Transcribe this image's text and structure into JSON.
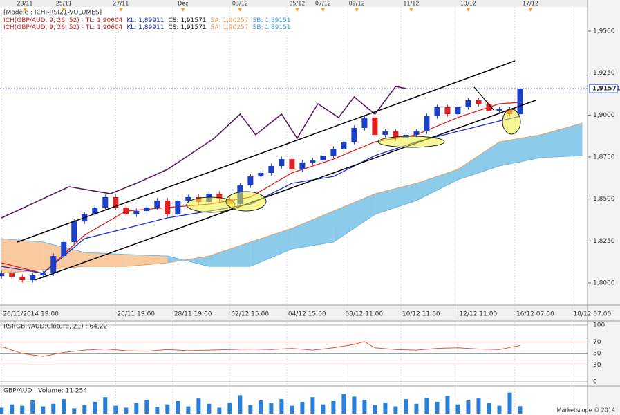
{
  "chart_data": [
    {
      "type": "candlestick",
      "header": "[Modèle : ICHI-RSI21-VOLUMES]",
      "info_lines": [
        [
          {
            "text": "ICH(GBP/AUD, 9, 26, 52) -  TL: 1,90604",
            "color": "#d42020"
          },
          {
            "text": "KL: 1,89911",
            "color": "#1a2fc0"
          },
          {
            "text": "CS: 1,91571",
            "color": "#222222"
          },
          {
            "text": "SA: 1,90257",
            "color": "#e89a50"
          },
          {
            "text": "SB: 1,89151",
            "color": "#3aa0e0"
          }
        ],
        [
          {
            "text": "ICH(GBP/AUD, 9, 26, 52) -  TL: 1,90604",
            "color": "#d42020"
          },
          {
            "text": "KL: 1,89911",
            "color": "#1a2fc0"
          },
          {
            "text": "CS: 1,91571",
            "color": "#222222"
          },
          {
            "text": "SA: 1,90257",
            "color": "#e89a50"
          },
          {
            "text": "SB: 1,89151",
            "color": "#3aa0e0"
          }
        ]
      ],
      "x": [
        0,
        2,
        4,
        6,
        8,
        10,
        12,
        14,
        16,
        18,
        20,
        22,
        24,
        26,
        28,
        30,
        32,
        34,
        36,
        38,
        40,
        42,
        44,
        46,
        48,
        50,
        52,
        54,
        56,
        58,
        60,
        62,
        64,
        66,
        68,
        70,
        72,
        74,
        76,
        78,
        80,
        82,
        84,
        86,
        88,
        90,
        92,
        94,
        96,
        98,
        100
      ],
      "open": [
        1.804,
        1.8057,
        1.8037,
        1.8016,
        1.8045,
        1.8057,
        1.816,
        1.8243,
        1.8366,
        1.8408,
        1.8449,
        1.8511,
        1.8449,
        1.8408,
        1.8428,
        1.8449,
        1.849,
        1.8408,
        1.849,
        1.8511,
        1.8482,
        1.8531,
        1.8498,
        1.8469,
        1.8581,
        1.8634,
        1.8655,
        1.8696,
        1.8737,
        1.8676,
        1.8717,
        1.8729,
        1.8758,
        1.8799,
        1.884,
        1.8923,
        1.8985,
        1.8882,
        1.8902,
        1.8861,
        1.8882,
        1.8902,
        1.8993,
        1.9047,
        1.9005,
        1.9047,
        1.9088,
        1.9067,
        1.9026,
        1.9034,
        1.9005
      ],
      "high": [
        1.8072,
        1.8072,
        1.8052,
        1.806,
        1.8072,
        1.8175,
        1.8258,
        1.8381,
        1.8423,
        1.8464,
        1.8526,
        1.8526,
        1.8464,
        1.8443,
        1.8464,
        1.8505,
        1.8505,
        1.8505,
        1.8526,
        1.8526,
        1.8546,
        1.8546,
        1.8513,
        1.8596,
        1.8649,
        1.867,
        1.8711,
        1.8752,
        1.8752,
        1.8732,
        1.8744,
        1.8773,
        1.8814,
        1.8855,
        1.8938,
        1.9,
        1.9,
        1.8917,
        1.8917,
        1.8897,
        1.8917,
        1.9008,
        1.9062,
        1.9062,
        1.9062,
        1.9103,
        1.9103,
        1.9082,
        1.9049,
        1.9049,
        1.9172
      ],
      "low": [
        1.8025,
        1.8022,
        1.8001,
        1.8001,
        1.803,
        1.8042,
        1.8145,
        1.8228,
        1.8351,
        1.8393,
        1.8434,
        1.8434,
        1.8393,
        1.8393,
        1.8413,
        1.8434,
        1.8393,
        1.8393,
        1.8475,
        1.8467,
        1.8467,
        1.8483,
        1.8454,
        1.8454,
        1.8566,
        1.8619,
        1.864,
        1.8681,
        1.8661,
        1.8661,
        1.8702,
        1.8714,
        1.8743,
        1.8784,
        1.8825,
        1.8908,
        1.8867,
        1.8867,
        1.8846,
        1.8846,
        1.8867,
        1.8887,
        1.8978,
        1.899,
        1.899,
        1.9032,
        1.9052,
        1.9011,
        1.9011,
        1.899,
        1.899
      ],
      "close": [
        1.8057,
        1.8037,
        1.8016,
        1.8045,
        1.8057,
        1.816,
        1.8243,
        1.8366,
        1.8408,
        1.8449,
        1.8511,
        1.8449,
        1.8408,
        1.8428,
        1.8449,
        1.849,
        1.8408,
        1.849,
        1.8511,
        1.8482,
        1.8531,
        1.8498,
        1.8469,
        1.8581,
        1.8634,
        1.8655,
        1.8696,
        1.8737,
        1.8676,
        1.8717,
        1.8729,
        1.8758,
        1.8799,
        1.884,
        1.8923,
        1.8985,
        1.8882,
        1.8902,
        1.8861,
        1.8882,
        1.8902,
        1.8993,
        1.9047,
        1.9005,
        1.9047,
        1.9088,
        1.9067,
        1.9026,
        1.9034,
        1.9005,
        1.9157
      ],
      "up_color": "#1a3fc8",
      "down_color": "#e02020",
      "lines": [
        {
          "color": "#e02020",
          "x": [
            0,
            8,
            16,
            24,
            32,
            40,
            48,
            56,
            64,
            72,
            80,
            88,
            96,
            100
          ],
          "values": [
            1.8119,
            1.8057,
            1.8284,
            1.8428,
            1.8449,
            1.8469,
            1.8511,
            1.8655,
            1.8737,
            1.884,
            1.8882,
            1.8985,
            1.9067,
            1.9075
          ]
        },
        {
          "color": "#1a2fd0",
          "x": [
            0,
            8,
            16,
            24,
            32,
            40,
            48,
            56,
            64,
            72,
            80,
            88,
            96,
            100
          ],
          "values": [
            1.8098,
            1.8057,
            1.8263,
            1.8325,
            1.8387,
            1.8428,
            1.8469,
            1.8593,
            1.8634,
            1.8758,
            1.884,
            1.8902,
            1.8964,
            1.8993
          ]
        },
        {
          "color": "#5a1a5a",
          "x": [
            0,
            13,
            21,
            26,
            32,
            36,
            41,
            46,
            49,
            54,
            57,
            61,
            65,
            68,
            72,
            76,
            78
          ],
          "values": [
            1.8387,
            1.8573,
            1.8531,
            1.8593,
            1.8676,
            1.8758,
            1.8861,
            1.9005,
            1.8882,
            1.9005,
            1.8861,
            1.9067,
            1.8985,
            1.9108,
            1.9005,
            1.917,
            1.9158
          ]
        }
      ],
      "cloud": {
        "x": [
          0,
          8,
          16,
          24,
          32,
          40,
          48,
          56,
          64,
          72,
          80,
          88,
          96,
          104,
          112
        ],
        "a": [
          1.8057,
          1.8078,
          1.8098,
          1.8098,
          1.8119,
          1.816,
          1.8243,
          1.8325,
          1.8428,
          1.8531,
          1.8593,
          1.8676,
          1.884,
          1.8882,
          1.8952
        ],
        "b": [
          1.8263,
          1.8243,
          1.8181,
          1.8169,
          1.816,
          1.8098,
          1.8098,
          1.8202,
          1.8243,
          1.8408,
          1.849,
          1.8614,
          1.8696,
          1.8746,
          1.8758
        ],
        "a_color": "#e8a060",
        "b_color": "#6ab8e8",
        "up_fill": "#8ccbea",
        "down_fill": "#f9c9a0"
      },
      "last_price": {
        "value": 1.91571,
        "label": "1,91571"
      },
      "xlim": [
        -0.3,
        113
      ],
      "ylim": [
        1.7872,
        1.9644
      ],
      "yticks": [
        {
          "value": 1.8,
          "label": "1,8000"
        },
        {
          "value": 1.825,
          "label": "1,8250"
        },
        {
          "value": 1.85,
          "label": "1,8500"
        },
        {
          "value": 1.875,
          "label": "1,8750"
        },
        {
          "value": 1.9,
          "label": "1,9000"
        },
        {
          "value": 1.925,
          "label": "1,9250"
        },
        {
          "value": 1.95,
          "label": "1,9500"
        }
      ],
      "xticks": [
        {
          "value": 0,
          "label": "20/11/2014 19:00"
        },
        {
          "value": 22,
          "label": "26/11 19:00"
        },
        {
          "value": 33,
          "label": "28/11 19:00"
        },
        {
          "value": 44,
          "label": "02/12 15:00"
        },
        {
          "value": 55,
          "label": "04/12 15:00"
        },
        {
          "value": 66,
          "label": "08/12 11:00"
        },
        {
          "value": 77,
          "label": "10/12 11:00"
        },
        {
          "value": 88,
          "label": "12/12 11:00"
        },
        {
          "value": 99,
          "label": "16/12 07:00"
        },
        {
          "value": 110,
          "label": "18/12 07:00"
        }
      ],
      "top_ticks": [
        {
          "value": 4.5,
          "label": "23/11"
        },
        {
          "value": 12,
          "label": "25/11"
        },
        {
          "value": 23,
          "label": "27/11"
        },
        {
          "value": 35,
          "label": "Dec"
        },
        {
          "value": 46,
          "label": "03/12"
        },
        {
          "value": 57,
          "label": "05/12"
        },
        {
          "value": 62,
          "label": "07/12"
        },
        {
          "value": 68.5,
          "label": "09/12"
        },
        {
          "value": 79,
          "label": "11/12"
        },
        {
          "value": 90,
          "label": "13/12"
        },
        {
          "value": 102,
          "label": "17/12"
        }
      ],
      "grid": true
    },
    {
      "type": "line",
      "title": "RSI(GBP/AUD:Cloture, 21) : 64,22",
      "color": "#d85a3a",
      "x": [
        0,
        4,
        8,
        12,
        16,
        20,
        24,
        28,
        32,
        36,
        40,
        44,
        48,
        52,
        56,
        60,
        64,
        68,
        70,
        72,
        76,
        80,
        84,
        88,
        92,
        96,
        100
      ],
      "values": [
        62,
        50,
        45,
        52,
        56,
        58,
        55,
        54,
        57,
        55,
        56,
        57,
        58,
        57,
        59,
        56,
        60,
        66,
        71,
        60,
        57,
        56,
        59,
        60,
        58,
        57,
        64.22
      ],
      "xlim": [
        -0.3,
        113
      ],
      "ylim": [
        0,
        100
      ],
      "yticks": [
        0,
        30,
        50,
        70,
        100
      ],
      "level_colors": [
        "#999999",
        "#e03030",
        "#000000",
        "#e03030",
        "#999999"
      ]
    },
    {
      "type": "bar",
      "title": "GBP/AUD - Volume: 11 254",
      "color": "#2a7fd8",
      "x": [
        0,
        2,
        4,
        6,
        8,
        10,
        12,
        14,
        16,
        18,
        20,
        22,
        24,
        26,
        28,
        30,
        32,
        34,
        36,
        38,
        40,
        42,
        44,
        46,
        48,
        50,
        52,
        54,
        56,
        58,
        60,
        62,
        64,
        66,
        68,
        70,
        72,
        74,
        76,
        78,
        80,
        82,
        84,
        86,
        88,
        90,
        92,
        94,
        96,
        98,
        100
      ],
      "values": [
        9000,
        14000,
        12000,
        20000,
        11000,
        15000,
        22000,
        8000,
        13000,
        18000,
        25000,
        12000,
        9000,
        16000,
        21000,
        10000,
        14000,
        19000,
        11000,
        23000,
        15000,
        9000,
        17000,
        28000,
        13000,
        20000,
        16000,
        22000,
        12000,
        18000,
        25000,
        14000,
        19000,
        30000,
        26000,
        21000,
        13000,
        17000,
        11000,
        22000,
        15000,
        24000,
        18000,
        27000,
        14000,
        20000,
        23000,
        16000,
        12000,
        32000,
        11254
      ],
      "xlim": [
        -0.3,
        113
      ],
      "ylim": [
        0,
        40000
      ]
    }
  ],
  "footer": "Marketscope © 2014"
}
